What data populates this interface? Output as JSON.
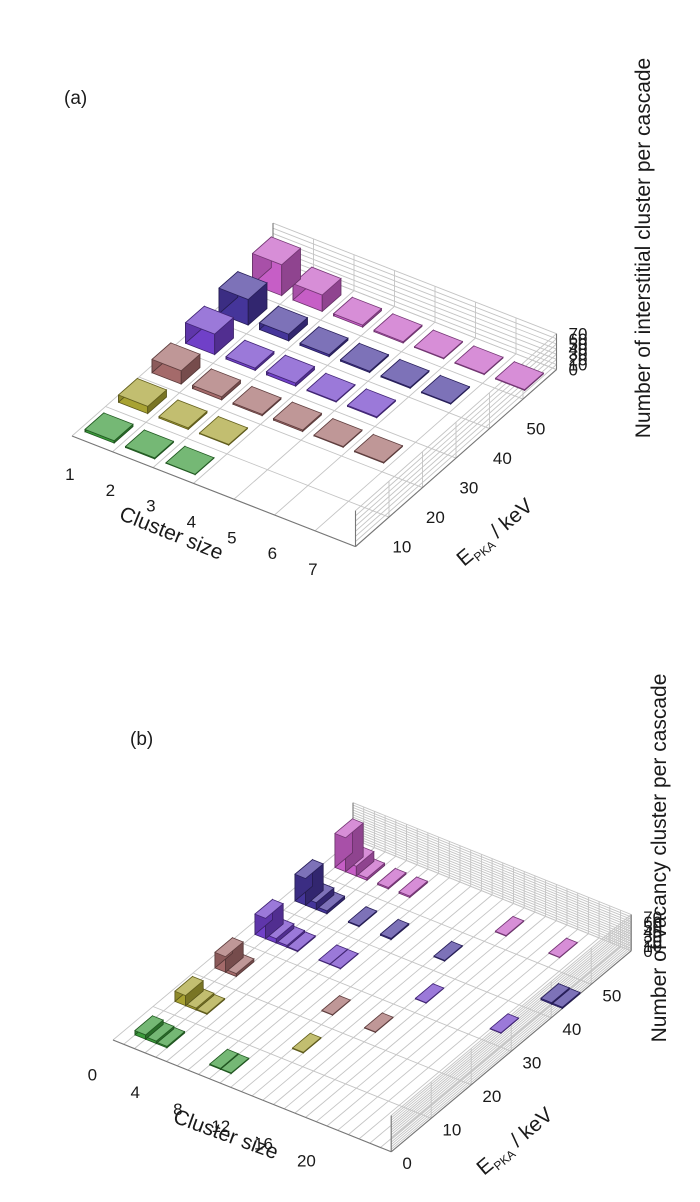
{
  "chart_data": [
    {
      "type": "bar3d",
      "panel_label": "(a)",
      "xlabel": "Cluster size",
      "ylabel_main": "E",
      "ylabel_sub": "PKA",
      "ylabel_unit": " / keV",
      "zlabel": "Number of interstitial cluster per cascade",
      "x_ticks": [
        "1",
        "2",
        "3",
        "4",
        "5",
        "6",
        "7"
      ],
      "y_ticks": [
        "10",
        "20",
        "30",
        "40",
        "50"
      ],
      "z_ticks": [
        "0",
        "10",
        "20",
        "30",
        "40",
        "50",
        "60",
        "70"
      ],
      "zlim": [
        0,
        70
      ],
      "series": [
        {
          "energy": 10,
          "color": "#3a9a3a",
          "values": [
            4.5,
            2,
            1,
            0,
            0,
            0,
            0
          ]
        },
        {
          "energy": 20,
          "color": "#a8a232",
          "values": [
            14,
            3,
            1.5,
            0,
            0,
            0,
            0
          ]
        },
        {
          "energy": 30,
          "color": "#a46a6a",
          "values": [
            26,
            6,
            2.5,
            3,
            1.5,
            1.5,
            0
          ]
        },
        {
          "energy": 40,
          "color": "#7040c8",
          "values": [
            40,
            4.5,
            6,
            1.5,
            2,
            0,
            0
          ]
        },
        {
          "energy": 50,
          "color": "#45359a",
          "values": [
            50,
            13,
            4,
            2.5,
            2,
            1.5,
            0
          ]
        },
        {
          "energy": 60,
          "color": "#c65ec6",
          "values": [
            60,
            32,
            4,
            2.5,
            1.5,
            1.5,
            1.5
          ]
        }
      ]
    },
    {
      "type": "bar3d",
      "panel_label": "(b)",
      "xlabel": "Cluster size",
      "ylabel_main": "E",
      "ylabel_sub": "PKA",
      "ylabel_unit": " / keV",
      "zlabel": "Number of vacancy cluster per cascade",
      "x_ticks": [
        "0",
        "4",
        "8",
        "12",
        "16",
        "20"
      ],
      "y_ticks": [
        "0",
        "10",
        "20",
        "30",
        "40",
        "50"
      ],
      "z_ticks": [
        "0",
        "10",
        "20",
        "30",
        "40",
        "50",
        "60",
        "70"
      ],
      "zlim": [
        0,
        75
      ],
      "series": [
        {
          "energy": 10,
          "color": "#3a9a3a",
          "points": [
            [
              1,
              9
            ],
            [
              2,
              5
            ],
            [
              3,
              3
            ],
            [
              8,
              2
            ],
            [
              9,
              1.5
            ]
          ]
        },
        {
          "energy": 20,
          "color": "#a8a232",
          "points": [
            [
              1,
              21
            ],
            [
              2,
              4
            ],
            [
              3,
              2
            ],
            [
              12,
              1.5
            ]
          ]
        },
        {
          "energy": 30,
          "color": "#a46a6a",
          "points": [
            [
              1,
              32
            ],
            [
              2,
              6
            ],
            [
              11,
              1
            ],
            [
              15,
              1
            ]
          ]
        },
        {
          "energy": 40,
          "color": "#7040c8",
          "points": [
            [
              1,
              42
            ],
            [
              2,
              9
            ],
            [
              3,
              4
            ],
            [
              4,
              2
            ],
            [
              7,
              1
            ],
            [
              8,
              1
            ],
            [
              16,
              1
            ],
            [
              23,
              1
            ]
          ]
        },
        {
          "energy": 50,
          "color": "#45359a",
          "points": [
            [
              1,
              55
            ],
            [
              2,
              14
            ],
            [
              3,
              6
            ],
            [
              6,
              2
            ],
            [
              9,
              2.5
            ],
            [
              14,
              1.5
            ],
            [
              24,
              3
            ],
            [
              25,
              2.5
            ]
          ]
        },
        {
          "energy": 60,
          "color": "#c65ec6",
          "points": [
            [
              1,
              70
            ],
            [
              2,
              20
            ],
            [
              3,
              5
            ],
            [
              5,
              3
            ],
            [
              7,
              3
            ],
            [
              16,
              1.5
            ],
            [
              21,
              1
            ]
          ]
        }
      ]
    }
  ]
}
